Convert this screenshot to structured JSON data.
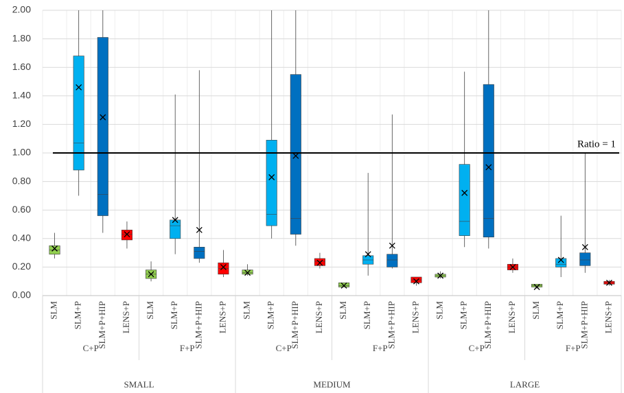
{
  "chart_data": {
    "type": "box",
    "categories": [
      "SLM",
      "SLM+P",
      "SLM+P+HIP",
      "LENS+P",
      "SLM",
      "SLM+P",
      "SLM+P+HIP",
      "LENS+P",
      "SLM",
      "SLM+P",
      "SLM+P+HIP",
      "LENS+P",
      "SLM",
      "SLM+P",
      "SLM+P+HIP",
      "LENS+P",
      "SLM",
      "SLM+P",
      "SLM+P+HIP",
      "LENS+P",
      "SLM",
      "SLM+P",
      "SLM+P+HIP",
      "LENS+P"
    ],
    "groups": [
      "C+P",
      "F+P",
      "C+P",
      "F+P",
      "C+P",
      "F+P"
    ],
    "supergroups": [
      "SMALL",
      "MEDIUM",
      "LARGE"
    ],
    "boxes": [
      {
        "min": 0.26,
        "q1": 0.29,
        "median": 0.32,
        "q3": 0.35,
        "max": 0.44,
        "mean": 0.33,
        "color": "#92d050"
      },
      {
        "min": 0.7,
        "q1": 0.88,
        "median": 1.07,
        "q3": 1.68,
        "max": 2.0,
        "mean": 1.46,
        "color": "#00b0f0"
      },
      {
        "min": 0.44,
        "q1": 0.56,
        "median": 0.71,
        "q3": 1.81,
        "max": 2.0,
        "mean": 1.25,
        "color": "#0070c0"
      },
      {
        "min": 0.33,
        "q1": 0.39,
        "median": 0.43,
        "q3": 0.46,
        "max": 0.52,
        "mean": 0.43,
        "color": "#ff0000"
      },
      {
        "min": 0.1,
        "q1": 0.12,
        "median": 0.15,
        "q3": 0.18,
        "max": 0.24,
        "mean": 0.15,
        "color": "#92d050"
      },
      {
        "min": 0.29,
        "q1": 0.4,
        "median": 0.49,
        "q3": 0.53,
        "max": 1.41,
        "mean": 0.53,
        "color": "#00b0f0"
      },
      {
        "min": 0.23,
        "q1": 0.26,
        "median": 0.31,
        "q3": 0.34,
        "max": 1.58,
        "mean": 0.46,
        "color": "#0070c0"
      },
      {
        "min": 0.13,
        "q1": 0.15,
        "median": 0.19,
        "q3": 0.23,
        "max": 0.32,
        "mean": 0.2,
        "color": "#ff0000"
      },
      {
        "min": 0.14,
        "q1": 0.15,
        "median": 0.16,
        "q3": 0.18,
        "max": 0.22,
        "mean": 0.16,
        "color": "#92d050"
      },
      {
        "min": 0.4,
        "q1": 0.49,
        "median": 0.57,
        "q3": 1.09,
        "max": 2.0,
        "mean": 0.83,
        "color": "#00b0f0"
      },
      {
        "min": 0.35,
        "q1": 0.43,
        "median": 0.54,
        "q3": 1.55,
        "max": 2.0,
        "mean": 0.98,
        "color": "#0070c0"
      },
      {
        "min": 0.19,
        "q1": 0.21,
        "median": 0.24,
        "q3": 0.26,
        "max": 0.3,
        "mean": 0.23,
        "color": "#ff0000"
      },
      {
        "min": 0.06,
        "q1": 0.06,
        "median": 0.07,
        "q3": 0.09,
        "max": 0.09,
        "mean": 0.07,
        "color": "#92d050"
      },
      {
        "min": 0.14,
        "q1": 0.22,
        "median": 0.25,
        "q3": 0.28,
        "max": 0.86,
        "mean": 0.29,
        "color": "#00b0f0"
      },
      {
        "min": 0.19,
        "q1": 0.2,
        "median": 0.25,
        "q3": 0.29,
        "max": 1.27,
        "mean": 0.35,
        "color": "#0070c0"
      },
      {
        "min": 0.07,
        "q1": 0.09,
        "median": 0.11,
        "q3": 0.13,
        "max": 0.13,
        "mean": 0.1,
        "color": "#ff0000"
      },
      {
        "min": 0.12,
        "q1": 0.13,
        "median": 0.14,
        "q3": 0.15,
        "max": 0.17,
        "mean": 0.14,
        "color": "#92d050"
      },
      {
        "min": 0.34,
        "q1": 0.42,
        "median": 0.52,
        "q3": 0.92,
        "max": 1.57,
        "mean": 0.72,
        "color": "#00b0f0"
      },
      {
        "min": 0.33,
        "q1": 0.41,
        "median": 0.54,
        "q3": 1.48,
        "max": 2.0,
        "mean": 0.9,
        "color": "#0070c0"
      },
      {
        "min": 0.16,
        "q1": 0.18,
        "median": 0.2,
        "q3": 0.22,
        "max": 0.26,
        "mean": 0.2,
        "color": "#ff0000"
      },
      {
        "min": 0.05,
        "q1": 0.06,
        "median": 0.07,
        "q3": 0.08,
        "max": 0.08,
        "mean": 0.06,
        "color": "#92d050"
      },
      {
        "min": 0.13,
        "q1": 0.2,
        "median": 0.22,
        "q3": 0.26,
        "max": 0.56,
        "mean": 0.25,
        "color": "#00b0f0"
      },
      {
        "min": 0.16,
        "q1": 0.21,
        "median": 0.25,
        "q3": 0.3,
        "max": 1.0,
        "mean": 0.34,
        "color": "#0070c0"
      },
      {
        "min": 0.07,
        "q1": 0.08,
        "median": 0.09,
        "q3": 0.1,
        "max": 0.11,
        "mean": 0.09,
        "color": "#ff0000"
      }
    ],
    "ref_line": {
      "value": 1,
      "label": "Ratio  = 1"
    },
    "ylim": [
      0,
      2
    ],
    "yticks": [
      {
        "value": 0,
        "label": "0.00"
      },
      {
        "value": 0.2,
        "label": "0.20"
      },
      {
        "value": 0.4,
        "label": "0.40"
      },
      {
        "value": 0.6,
        "label": "0.60"
      },
      {
        "value": 0.8,
        "label": "0.80"
      },
      {
        "value": 1,
        "label": "1.00"
      },
      {
        "value": 1.2,
        "label": "1.20"
      },
      {
        "value": 1.4,
        "label": "1.40"
      },
      {
        "value": 1.6,
        "label": "1.60"
      },
      {
        "value": 1.8,
        "label": "1.80"
      },
      {
        "value": 2,
        "label": "2.00"
      }
    ],
    "grid": true
  }
}
